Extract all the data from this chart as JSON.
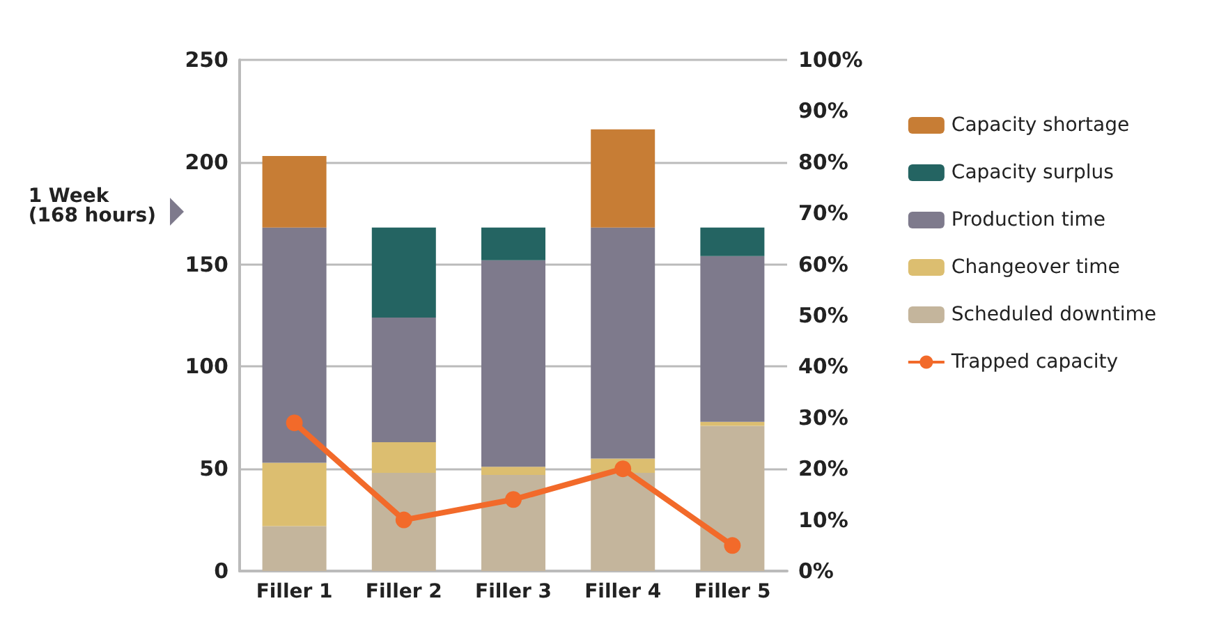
{
  "chart_data": {
    "type": "bar",
    "stacked": true,
    "categories": [
      "Filler 1",
      "Filler 2",
      "Filler 3",
      "Filler 4",
      "Filler 5"
    ],
    "series": [
      {
        "name": "Scheduled downtime",
        "color": "#c4b59c",
        "values": [
          22,
          48,
          47,
          48,
          71
        ]
      },
      {
        "name": "Changeover time",
        "color": "#dcbe70",
        "values": [
          31,
          15,
          4,
          7,
          2
        ]
      },
      {
        "name": "Production time",
        "color": "#7e7a8c",
        "values": [
          115,
          61,
          101,
          113,
          81
        ]
      },
      {
        "name": "Capacity surplus",
        "color": "#246462",
        "values": [
          0,
          44,
          16,
          0,
          14
        ]
      },
      {
        "name": "Capacity shortage",
        "color": "#c77d35",
        "values": [
          35,
          0,
          0,
          48,
          0
        ]
      },
      {
        "name": "Trapped capacity",
        "type": "line",
        "axis": "y2",
        "color": "#f26a2a",
        "values": [
          29,
          10,
          14,
          20,
          5
        ]
      }
    ],
    "ylim": [
      0,
      250
    ],
    "yticks": [
      0,
      50,
      100,
      150,
      200,
      250
    ],
    "y2lim": [
      0,
      100
    ],
    "y2ticks": [
      {
        "value": 0,
        "label": "0%"
      },
      {
        "value": 10,
        "label": "10%"
      },
      {
        "value": 20,
        "label": "20%"
      },
      {
        "value": 30,
        "label": "30%"
      },
      {
        "value": 40,
        "label": "40%"
      },
      {
        "value": 50,
        "label": "50%"
      },
      {
        "value": 60,
        "label": "60%"
      },
      {
        "value": 70,
        "label": "70%"
      },
      {
        "value": 80,
        "label": "80%"
      },
      {
        "value": 90,
        "label": "90%"
      },
      {
        "value": 100,
        "label": "100%"
      }
    ],
    "grid": "y",
    "legend": "right",
    "marker": "circle",
    "line_style": "solid",
    "annotations": [
      "1 Week\n(168 hours)"
    ]
  }
}
